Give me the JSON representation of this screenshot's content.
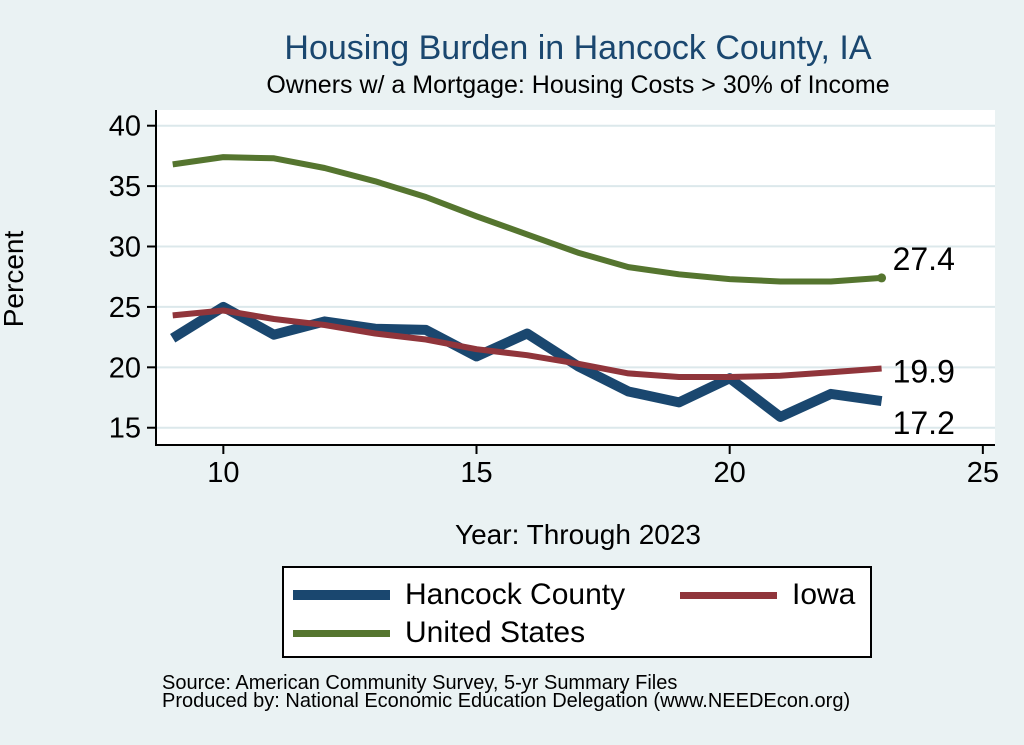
{
  "page": {
    "background_color": "#eaf2f3",
    "plot_background_color": "#ffffff",
    "grid_color": "#dce8eb",
    "title_color": "#1a476f"
  },
  "chart_data": {
    "type": "line",
    "title": "Housing Burden in Hancock County, IA",
    "subtitle": "Owners w/ a Mortgage: Housing Costs > 30% of Income",
    "xlabel": "Year: Through 2023",
    "ylabel": "Percent",
    "x": [
      9,
      10,
      11,
      12,
      13,
      14,
      15,
      16,
      17,
      18,
      19,
      20,
      21,
      22,
      23
    ],
    "xticks": [
      10,
      15,
      20,
      25
    ],
    "yticks": [
      15,
      20,
      25,
      30,
      35,
      40
    ],
    "xlim": [
      8.67,
      25.24
    ],
    "ylim": [
      13.57,
      41.3
    ],
    "grid": "horizontal",
    "legend_position": "bottom",
    "series": [
      {
        "name": "Hancock County",
        "color": "#1a476f",
        "line_width": 10,
        "values": [
          22.4,
          25.0,
          22.7,
          23.8,
          23.2,
          23.1,
          20.9,
          22.8,
          20.1,
          18.0,
          17.1,
          19.1,
          15.9,
          17.8,
          17.2
        ],
        "end_label": "17.2",
        "end_marker": false
      },
      {
        "name": "Iowa",
        "color": "#90353b",
        "line_width": 6,
        "values": [
          24.3,
          24.7,
          24.0,
          23.5,
          22.8,
          22.3,
          21.5,
          21.0,
          20.3,
          19.5,
          19.2,
          19.2,
          19.3,
          19.6,
          19.9
        ],
        "end_label": "19.9",
        "end_marker": false
      },
      {
        "name": "United States",
        "color": "#55752f",
        "line_width": 6,
        "values": [
          36.8,
          37.4,
          37.3,
          36.5,
          35.4,
          34.1,
          32.5,
          31.0,
          29.5,
          28.3,
          27.7,
          27.3,
          27.1,
          27.1,
          27.4
        ],
        "end_label": "27.4",
        "end_marker": true
      }
    ]
  },
  "legend": {
    "entries": [
      {
        "label": "Hancock County",
        "color": "#1a476f",
        "thickness": 10
      },
      {
        "label": "Iowa",
        "color": "#90353b",
        "thickness": 7
      },
      {
        "label": "United States",
        "color": "#55752f",
        "thickness": 7
      }
    ]
  },
  "footer": {
    "source": "Source: American Community Survey, 5-yr Summary Files",
    "produced_by": "Produced by: National Economic Education Delegation (www.NEEDEcon.org)"
  }
}
